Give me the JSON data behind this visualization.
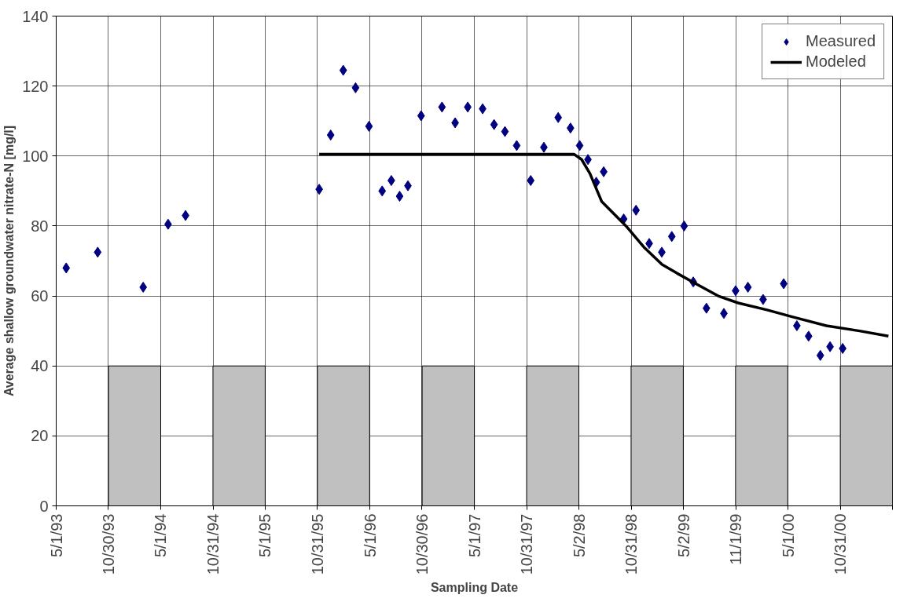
{
  "chart_data": {
    "type": "scatter",
    "xlabel": "Sampling Date",
    "ylabel": "Average shallow groundwater nitrate-N [mg/l]",
    "xlim": [
      "1993-05-01",
      "2001-05-01"
    ],
    "ylim": [
      0,
      140
    ],
    "yticks": [
      0,
      20,
      40,
      60,
      80,
      100,
      120,
      140
    ],
    "xticks": [
      {
        "value": "1993-05-01",
        "label": "5/1/93"
      },
      {
        "value": "1993-10-30",
        "label": "10/30/93"
      },
      {
        "value": "1994-05-01",
        "label": "5/1/94"
      },
      {
        "value": "1994-10-31",
        "label": "10/31/94"
      },
      {
        "value": "1995-05-01",
        "label": "5/1/95"
      },
      {
        "value": "1995-10-31",
        "label": "10/31/95"
      },
      {
        "value": "1996-05-01",
        "label": "5/1/96"
      },
      {
        "value": "1996-10-30",
        "label": "10/30/96"
      },
      {
        "value": "1997-05-01",
        "label": "5/1/97"
      },
      {
        "value": "1997-10-31",
        "label": "10/31/97"
      },
      {
        "value": "1998-05-02",
        "label": "5/2/98"
      },
      {
        "value": "1998-10-31",
        "label": "10/31/98"
      },
      {
        "value": "1999-05-02",
        "label": "5/2/99"
      },
      {
        "value": "1999-11-01",
        "label": "11/1/99"
      },
      {
        "value": "2000-05-01",
        "label": "5/1/00"
      },
      {
        "value": "2000-10-31",
        "label": "10/31/00"
      },
      {
        "value": "2001-05-01",
        "label": null
      }
    ],
    "grid": true,
    "legend": "top right",
    "series": [
      {
        "type": "bar",
        "color": "#c0c0c0",
        "x": [
          "1994-01-30",
          "1995-01-30",
          "1996-01-30",
          "1997-01-30",
          "1998-01-30",
          "1999-01-30",
          "2000-01-30",
          "2001-01-30"
        ],
        "values": [
          40,
          40,
          40,
          40,
          40,
          40,
          40,
          40
        ]
      },
      {
        "name": "Measured",
        "color": "#000080",
        "marker": "diamond",
        "x": [
          "1993-06-05",
          "1993-09-23",
          "1994-03-01",
          "1994-05-27",
          "1994-07-27",
          "1995-11-06",
          "1995-12-16",
          "1996-01-29",
          "1996-03-12",
          "1996-04-28",
          "1996-06-13",
          "1996-07-15",
          "1996-08-13",
          "1996-09-11",
          "1996-10-27",
          "1997-01-08",
          "1997-02-23",
          "1997-04-08",
          "1997-05-30",
          "1997-07-09",
          "1997-08-16",
          "1997-09-26",
          "1997-11-14",
          "1997-12-30",
          "1998-02-18",
          "1998-04-02",
          "1998-05-04",
          "1998-06-02",
          "1998-07-01",
          "1998-07-27",
          "1998-10-05",
          "1998-11-17",
          "1999-01-02",
          "1999-02-15",
          "1999-03-22",
          "1999-05-04",
          "1999-06-05",
          "1999-07-21",
          "1999-09-20",
          "1999-10-31",
          "1999-12-13",
          "2000-02-04",
          "2000-04-16",
          "2000-06-01",
          "2000-07-12",
          "2000-08-22",
          "2000-09-25",
          "2000-11-08"
        ],
        "values": [
          68,
          72.5,
          62.5,
          80.5,
          83,
          90.5,
          106,
          124.5,
          119.5,
          108.5,
          90,
          93,
          88.5,
          91.5,
          111.5,
          114,
          109.5,
          114,
          113.5,
          109,
          107,
          103,
          93,
          102.5,
          111,
          108,
          103,
          99,
          92.5,
          95.5,
          82,
          84.5,
          75,
          72.5,
          77,
          80,
          64,
          56.5,
          55,
          61.5,
          62.5,
          59,
          63.5,
          51.5,
          48.5,
          43,
          45.5,
          45
        ]
      },
      {
        "type": "line",
        "name": "Modeled",
        "color": "#000000",
        "line_style": "solid",
        "x": [
          "1995-11-06",
          "1998-04-15",
          "1998-05-11",
          "1998-06-09",
          "1998-07-20",
          "1998-10-13",
          "1998-12-14",
          "1999-02-16",
          "1999-04-09",
          "1999-06-14",
          "1999-08-31",
          "1999-11-09",
          "2000-02-18",
          "2000-05-18",
          "2000-09-12",
          "2001-01-06",
          "2001-04-17"
        ],
        "values": [
          100.5,
          100.5,
          99,
          95,
          87,
          80,
          74,
          69,
          66.5,
          63.5,
          60,
          58,
          56,
          54,
          51.5,
          50,
          48.5
        ]
      }
    ]
  }
}
